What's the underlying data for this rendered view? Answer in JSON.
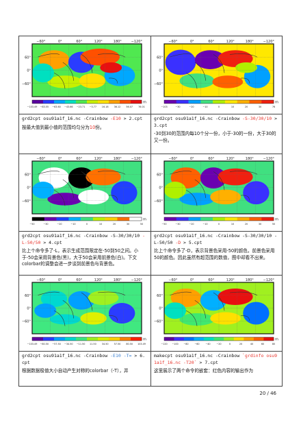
{
  "cells": [
    {
      "cmd_parts": [
        {
          "t": "grd2cpt osu91a1f_16.nc -Crainbow ",
          "c": ""
        },
        {
          "t": "-E10",
          "c": "red"
        },
        {
          "t": " > 2.cpt",
          "c": ""
        }
      ],
      "desc_parts": [
        {
          "t": "按最大值到最小值的范围均匀分为",
          "c": ""
        },
        {
          "t": "10",
          "c": "red"
        },
        {
          "t": "份。",
          "c": ""
        }
      ],
      "ticks": [
        "−103.49",
        "−83.55",
        "−63.60",
        "−43.66",
        "−23.71",
        "−3.77",
        "16.18",
        "36.12",
        "56.07",
        "76.01"
      ],
      "unit": "m"
    },
    {
      "cmd_parts": [
        {
          "t": "grd2cpt osu91a1f_16.nc -Crainbow ",
          "c": ""
        },
        {
          "t": "-S-30/30/10",
          "c": "red"
        },
        {
          "t": " > 3.cpt",
          "c": ""
        }
      ],
      "desc_parts": [
        {
          "t": "-30到30的范围内每10个分一份，小于-30的一份，大于30的又一份。",
          "c": ""
        }
      ],
      "ticks": [
        "−103",
        "−30",
        "−20",
        "−10",
        "0",
        "10",
        "20",
        "30",
        "76"
      ],
      "unit": "m"
    },
    {
      "cmd_parts": [
        {
          "t": "grd2cpt osu91a1f_16.nc -Crainbow -S-30/30/10 ",
          "c": ""
        },
        {
          "t": "-L-50/50",
          "c": "red"
        },
        {
          "t": " > 4.cpt",
          "c": ""
        }
      ],
      "desc_parts": [
        {
          "t": "比上个命令多了-L，表示生成范围限定在-50到50之间。小于-50会采用背景色(黑)，大于50会采用前景色(白)。下文colorbar的调整会进一步谈到前景色与背景色。",
          "c": ""
        }
      ],
      "ticks": [
        "−50",
        "−30",
        "−20",
        "−10",
        "0",
        "10",
        "20",
        "30",
        "50"
      ],
      "unit": "m"
    },
    {
      "cmd_parts": [
        {
          "t": "grd2cpt osu91a1f_16.nc -Crainbow -S-30/30/10 -L-50/50 ",
          "c": ""
        },
        {
          "t": "-D",
          "c": "red"
        },
        {
          "t": " > 5.cpt",
          "c": ""
        }
      ],
      "desc_parts": [
        {
          "t": "比上个命令多了-D，表示背景色采用-50的颜色，前景色采用50的颜色。因此虽然有超范围的数值，图中却看不出来。",
          "c": ""
        }
      ],
      "ticks": [
        "−50",
        "−30",
        "−20",
        "−10",
        "0",
        "10",
        "20",
        "30",
        "50"
      ],
      "unit": "m"
    },
    {
      "cmd_parts": [
        {
          "t": "grd2cpt osu91a1f_16.nc -Crainbow ",
          "c": ""
        },
        {
          "t": "-E10 -T=",
          "c": "blue"
        },
        {
          "t": " > 6.cpt",
          "c": ""
        }
      ],
      "desc_parts": [
        {
          "t": "根据数据极值大小自动产生对称的colorbar（-T），并",
          "c": ""
        }
      ],
      "ticks": [
        "−103.49",
        "−80.50",
        "−57.50",
        "−34.50",
        "−11.50",
        "11.50",
        "34.50",
        "57.50",
        "80.50",
        "103.49"
      ],
      "unit": "m"
    },
    {
      "cmd_parts": [
        {
          "t": "makecpt osu91a1f_16.nc -Crainbow ",
          "c": ""
        },
        {
          "t": "`grdinfo osu91a1f_16.nc -T20`",
          "c": "red"
        },
        {
          "t": " > 7.cpt",
          "c": ""
        }
      ],
      "desc_parts": [
        {
          "t": "这里展示了两个命令的嵌套：红色内容的输出作为",
          "c": ""
        }
      ],
      "ticks": [
        "−120",
        "−100",
        "−80",
        "−60",
        "−40",
        "−20",
        "0",
        "20",
        "40",
        "60",
        "80"
      ],
      "unit": "m"
    }
  ],
  "map": {
    "top_labels": [
      "−60°",
      "0°",
      "60°",
      "120°",
      "180°",
      "−120°"
    ],
    "lat_labels": [
      "60°",
      "0°",
      "−60°"
    ]
  },
  "page_number": "20 / 46"
}
